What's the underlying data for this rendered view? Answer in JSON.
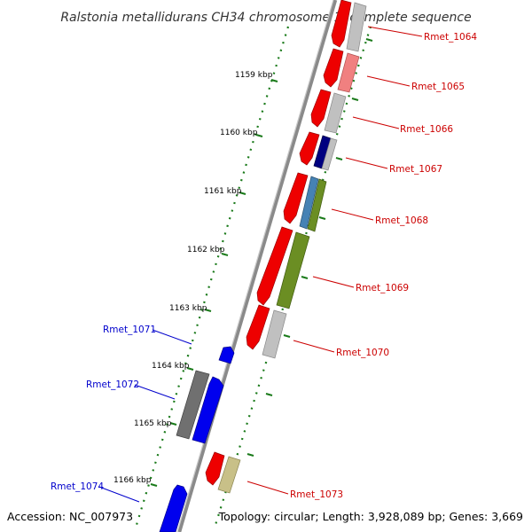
{
  "title": "Ralstonia metallidurans CH34 chromosome 1, complete sequence",
  "footer": {
    "accession": "Accession: NC_007973",
    "summary": "Topology: circular; Length: 3,928,089 bp; Genes: 3,669"
  },
  "colors": {
    "backbone": "#808080",
    "tick": "#1a7a1a",
    "forward_label": "#cc0000",
    "reverse_label": "#0000cc"
  },
  "ticks": [
    "1159 kbp",
    "1160 kbp",
    "1161 kbp",
    "1162 kbp",
    "1163 kbp",
    "1164 kbp",
    "1165 kbp",
    "1166 kbp"
  ],
  "gene_labels": [
    {
      "text": "Rmet_1064",
      "strand": "forward"
    },
    {
      "text": "Rmet_1065",
      "strand": "forward"
    },
    {
      "text": "Rmet_1066",
      "strand": "forward"
    },
    {
      "text": "Rmet_1067",
      "strand": "forward"
    },
    {
      "text": "Rmet_1068",
      "strand": "forward"
    },
    {
      "text": "Rmet_1069",
      "strand": "forward"
    },
    {
      "text": "Rmet_1070",
      "strand": "forward"
    },
    {
      "text": "Rmet_1071",
      "strand": "reverse"
    },
    {
      "text": "Rmet_1072",
      "strand": "reverse"
    },
    {
      "text": "Rmet_1073",
      "strand": "forward"
    },
    {
      "text": "Rmet_1074",
      "strand": "reverse"
    }
  ]
}
